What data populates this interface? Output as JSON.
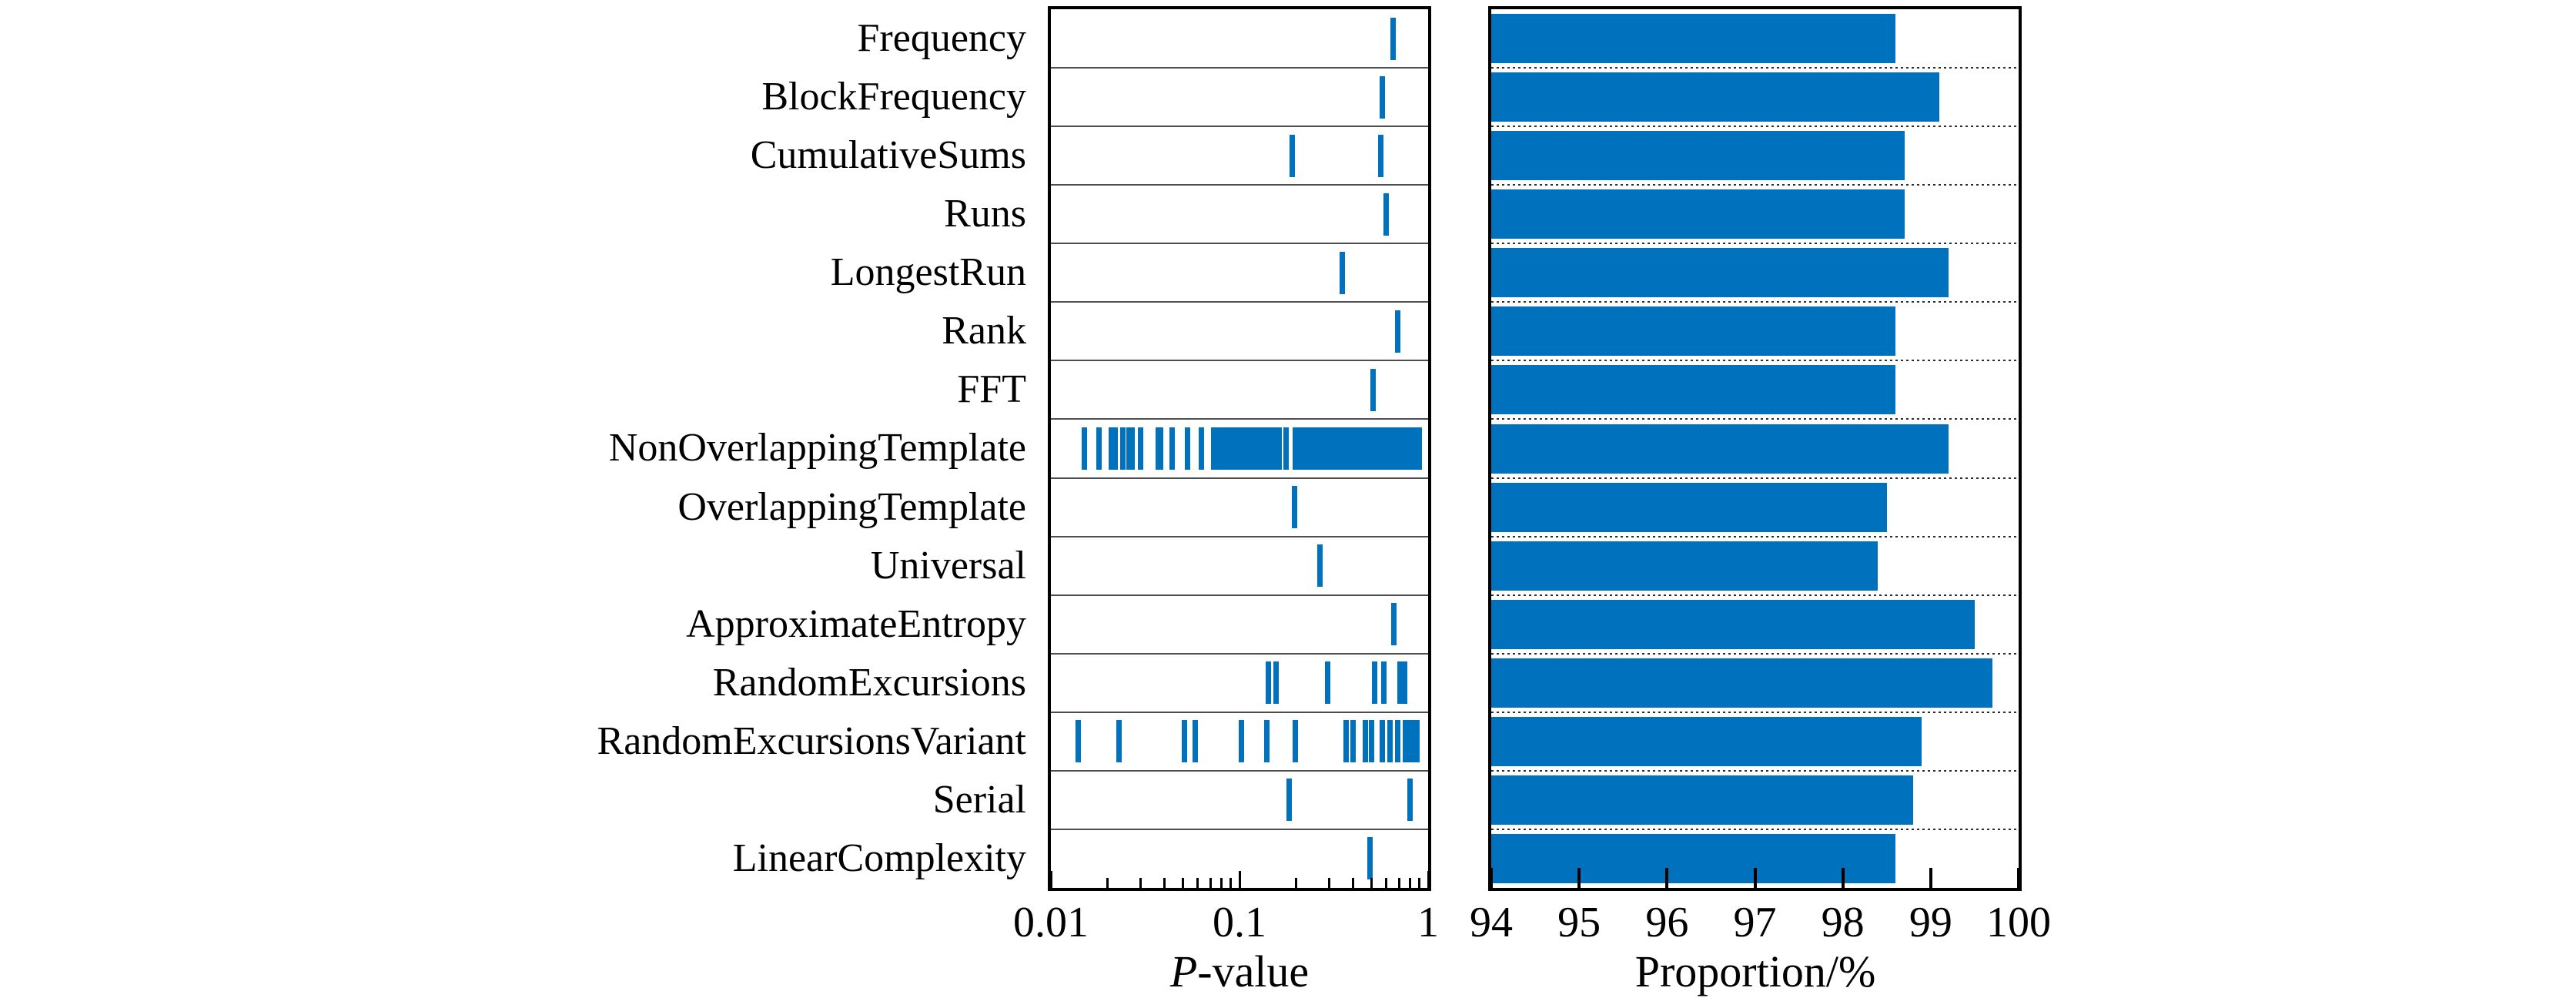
{
  "figure": {
    "background": "#ffffff",
    "accent_blue": "#0072BD",
    "left_axis": {
      "label_italic": "P",
      "label_rest": "-value",
      "scale": "log",
      "tick_labels": [
        "0.01",
        "0.1",
        "1"
      ],
      "tick_values": [
        0.01,
        0.1,
        1
      ]
    },
    "right_axis": {
      "label": "Proportion/%",
      "tick_labels": [
        "94",
        "95",
        "96",
        "97",
        "98",
        "99",
        "100"
      ],
      "tick_values": [
        94,
        95,
        96,
        97,
        98,
        99,
        100
      ]
    }
  },
  "chart_data": {
    "type": "dual-panel",
    "panels": [
      {
        "type": "scatter",
        "xlabel": "P-value",
        "xscale": "log",
        "xlim": [
          0.01,
          1
        ],
        "xticks": [
          0.01,
          0.1,
          1
        ],
        "grid": "solid-row-separators",
        "marker": "vertical-tick",
        "color": "#0072BD"
      },
      {
        "type": "bar",
        "xlabel": "Proportion/%",
        "xlim": [
          94,
          100
        ],
        "xticks": [
          94,
          95,
          96,
          97,
          98,
          99,
          100
        ],
        "grid": "dotted-row-separators",
        "color": "#0072BD"
      }
    ],
    "categories": [
      "Frequency",
      "BlockFrequency",
      "CumulativeSums",
      "Runs",
      "LongestRun",
      "Rank",
      "FFT",
      "NonOverlappingTemplate",
      "OverlappingTemplate",
      "Universal",
      "ApproximateEntropy",
      "RandomExcursions",
      "RandomExcursionsVariant",
      "Serial",
      "LinearComplexity"
    ],
    "p_values": [
      [
        0.65
      ],
      [
        0.57
      ],
      [
        0.19,
        0.56
      ],
      [
        0.6
      ],
      [
        0.35
      ],
      [
        0.69
      ],
      [
        0.51
      ],
      [
        0.015,
        0.018,
        0.021,
        0.022,
        0.024,
        0.026,
        0.027,
        0.03,
        0.037,
        0.038,
        0.044,
        0.053,
        0.063,
        0.073,
        0.076,
        0.079,
        0.083,
        0.086,
        0.09,
        0.094,
        0.098,
        0.102,
        0.106,
        0.113,
        0.117,
        0.12,
        0.125,
        0.13,
        0.135,
        0.14,
        0.146,
        0.152,
        0.158,
        0.163,
        0.176,
        0.198,
        0.204,
        0.212,
        0.221,
        0.23,
        0.24,
        0.25,
        0.26,
        0.271,
        0.281,
        0.289,
        0.303,
        0.318,
        0.333,
        0.349,
        0.366,
        0.384,
        0.403,
        0.422,
        0.443,
        0.464,
        0.487,
        0.51,
        0.535,
        0.561,
        0.588,
        0.617,
        0.647,
        0.678,
        0.711,
        0.745,
        0.782,
        0.82,
        0.86,
        0.901
      ],
      [
        0.195
      ],
      [
        0.266
      ],
      [
        0.66
      ],
      [
        0.142,
        0.156,
        0.292,
        0.52,
        0.585,
        0.71,
        0.75
      ],
      [
        0.014,
        0.023,
        0.051,
        0.058,
        0.102,
        0.14,
        0.197,
        0.366,
        0.4,
        0.463,
        0.5,
        0.57,
        0.63,
        0.69,
        0.755,
        0.79,
        0.83,
        0.87
      ],
      [
        0.184,
        0.805
      ],
      [
        0.49
      ]
    ],
    "proportions": [
      98.6,
      99.1,
      98.7,
      98.7,
      99.2,
      98.6,
      98.6,
      99.2,
      98.5,
      98.4,
      99.5,
      99.7,
      98.9,
      98.8,
      98.6
    ]
  }
}
